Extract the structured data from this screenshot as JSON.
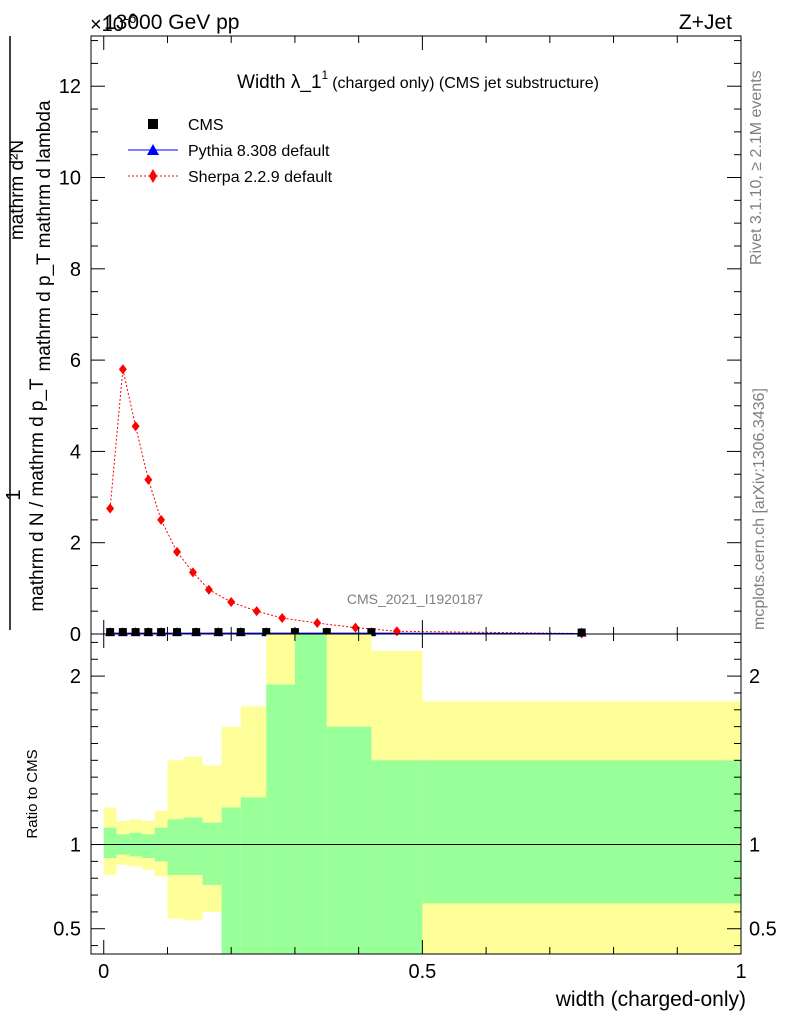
{
  "header": {
    "exponent": "×10",
    "exponent_power": "-6",
    "beam": "13000 GeV pp",
    "process": "Z+Jet"
  },
  "side": {
    "rivet": "Rivet 3.1.10, ≥ 2.1M events",
    "mcplots": "mcplots.cern.ch [arXiv:1306.3436]"
  },
  "chart_data": [
    {
      "type": "scatter",
      "title_main": "Width λ_1",
      "title_sup": "1",
      "title_rest": "(charged only) (CMS jet substructure)",
      "watermark": "CMS_2021_I1920187",
      "ylabel_num": "mathrm d²N",
      "ylabel_den": "mathrm d p_T mathrm d lambda",
      "ylabel_sub": "T",
      "ylabel_one": "1",
      "ylabel_pre": "mathrm d N / mathrm d p_T",
      "ylabel_pre_sub": "T",
      "xlim": [
        -0.02,
        1.0
      ],
      "ylim": [
        0,
        13.1
      ],
      "yticks": [
        0,
        2,
        4,
        6,
        8,
        10,
        12
      ],
      "legend": [
        {
          "label": "CMS",
          "marker": "square",
          "color": "#000000"
        },
        {
          "label": "Pythia 8.308 default",
          "marker": "triangle",
          "color": "#0000ff"
        },
        {
          "label": "Sherpa 2.2.9 default",
          "marker": "diamond",
          "color": "#ff0000"
        }
      ],
      "series": [
        {
          "name": "CMS",
          "color": "#000000",
          "x": [
            0.01,
            0.03,
            0.05,
            0.07,
            0.09,
            0.115,
            0.145,
            0.18,
            0.215,
            0.255,
            0.3,
            0.35,
            0.42,
            0.75
          ],
          "y": [
            0.02,
            0.02,
            0.02,
            0.02,
            0.02,
            0.02,
            0.02,
            0.02,
            0.02,
            0.02,
            0.02,
            0.02,
            0.02,
            0.01
          ]
        },
        {
          "name": "Pythia 8.308 default",
          "color": "#0000ff",
          "x": [
            0.01,
            0.03,
            0.05,
            0.07,
            0.09,
            0.115,
            0.145,
            0.18,
            0.215,
            0.255,
            0.3,
            0.35,
            0.42,
            0.75
          ],
          "y": [
            0.02,
            0.02,
            0.02,
            0.02,
            0.02,
            0.02,
            0.02,
            0.02,
            0.02,
            0.02,
            0.02,
            0.02,
            0.02,
            0.01
          ]
        },
        {
          "name": "Sherpa 2.2.9 default",
          "color": "#ff0000",
          "x": [
            0.01,
            0.03,
            0.05,
            0.07,
            0.09,
            0.115,
            0.14,
            0.165,
            0.2,
            0.24,
            0.28,
            0.335,
            0.395,
            0.46,
            0.75
          ],
          "y": [
            2.75,
            5.8,
            4.55,
            3.38,
            2.5,
            1.8,
            1.35,
            0.97,
            0.7,
            0.5,
            0.35,
            0.24,
            0.14,
            0.06,
            0.01
          ]
        }
      ]
    },
    {
      "type": "area",
      "ylabel": "Ratio to CMS",
      "xlabel": "width (charged-only)",
      "xlim": [
        -0.02,
        1.0
      ],
      "ylim": [
        0.35,
        2.25
      ],
      "xticks": [
        0,
        0.5,
        1
      ],
      "xtick_labels": [
        "0",
        "0.5",
        "1"
      ],
      "yticks": [
        0.5,
        1,
        2
      ],
      "ytick_labels": [
        "0.5",
        "1",
        "2"
      ],
      "reference": 1,
      "bins": [
        {
          "x0": 0.0,
          "x1": 0.02,
          "g_lo": 0.92,
          "g_hi": 1.1,
          "y_lo": 0.82,
          "y_hi": 1.22
        },
        {
          "x0": 0.02,
          "x1": 0.04,
          "g_lo": 0.94,
          "g_hi": 1.06,
          "y_lo": 0.88,
          "y_hi": 1.14
        },
        {
          "x0": 0.04,
          "x1": 0.06,
          "g_lo": 0.93,
          "g_hi": 1.07,
          "y_lo": 0.87,
          "y_hi": 1.15
        },
        {
          "x0": 0.06,
          "x1": 0.08,
          "g_lo": 0.92,
          "g_hi": 1.06,
          "y_lo": 0.85,
          "y_hi": 1.14
        },
        {
          "x0": 0.08,
          "x1": 0.1,
          "g_lo": 0.9,
          "g_hi": 1.1,
          "y_lo": 0.81,
          "y_hi": 1.2
        },
        {
          "x0": 0.1,
          "x1": 0.125,
          "g_lo": 0.82,
          "g_hi": 1.15,
          "y_lo": 0.56,
          "y_hi": 1.5
        },
        {
          "x0": 0.125,
          "x1": 0.155,
          "g_lo": 0.82,
          "g_hi": 1.16,
          "y_lo": 0.55,
          "y_hi": 1.52
        },
        {
          "x0": 0.155,
          "x1": 0.185,
          "g_lo": 0.76,
          "g_hi": 1.13,
          "y_lo": 0.6,
          "y_hi": 1.47
        },
        {
          "x0": 0.185,
          "x1": 0.215,
          "g_lo": 0.35,
          "g_hi": 1.22,
          "y_lo": 0.35,
          "y_hi": 1.7
        },
        {
          "x0": 0.215,
          "x1": 0.255,
          "g_lo": 0.35,
          "g_hi": 1.28,
          "y_lo": 0.35,
          "y_hi": 1.82
        },
        {
          "x0": 0.255,
          "x1": 0.3,
          "g_lo": 0.35,
          "g_hi": 1.95,
          "y_lo": 0.35,
          "y_hi": 2.25
        },
        {
          "x0": 0.3,
          "x1": 0.35,
          "g_lo": 0.35,
          "g_hi": 2.25,
          "y_lo": 0.35,
          "y_hi": 2.25
        },
        {
          "x0": 0.35,
          "x1": 0.42,
          "g_lo": 0.35,
          "g_hi": 1.7,
          "y_lo": 0.35,
          "y_hi": 2.25
        },
        {
          "x0": 0.42,
          "x1": 0.5,
          "g_lo": 0.35,
          "g_hi": 1.5,
          "y_lo": 0.35,
          "y_hi": 2.15
        },
        {
          "x0": 0.5,
          "x1": 1.0,
          "g_lo": 0.65,
          "g_hi": 1.5,
          "y_lo": 0.35,
          "y_hi": 1.85
        }
      ],
      "band_colors": {
        "inner": "#99ff99",
        "outer": "#ffff99"
      }
    }
  ]
}
